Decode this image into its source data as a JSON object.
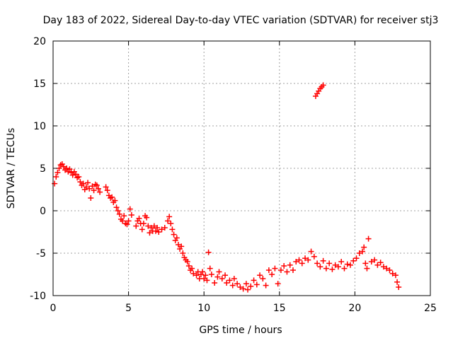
{
  "chart_data": {
    "type": "scatter",
    "title": "Day 183 of 2022, Sidereal Day-to-day VTEC variation (SDTVAR) for receiver stj3",
    "xlabel": "GPS time / hours",
    "ylabel": "SDTVAR / TECUs",
    "xlim": [
      0,
      25
    ],
    "ylim": [
      -10,
      20
    ],
    "xticks": [
      0,
      5,
      10,
      15,
      20,
      25
    ],
    "yticks": [
      -10,
      -5,
      0,
      5,
      10,
      15,
      20
    ],
    "xtick_labels": [
      "0",
      "5",
      "10",
      "15",
      "20",
      "25"
    ],
    "ytick_labels": [
      "-10",
      "-5",
      "0",
      "5",
      "10",
      "15",
      "20"
    ],
    "grid": true,
    "marker": "+",
    "color": "#ff0000",
    "series": [
      {
        "name": "SDTVAR",
        "points": [
          [
            0.1,
            3.2
          ],
          [
            0.2,
            4.0
          ],
          [
            0.3,
            4.5
          ],
          [
            0.4,
            5.0
          ],
          [
            0.5,
            5.4
          ],
          [
            0.6,
            5.5
          ],
          [
            0.7,
            5.2
          ],
          [
            0.8,
            4.8
          ],
          [
            0.9,
            5.0
          ],
          [
            1.0,
            4.6
          ],
          [
            1.1,
            4.9
          ],
          [
            1.2,
            4.5
          ],
          [
            1.3,
            4.2
          ],
          [
            1.4,
            4.6
          ],
          [
            1.5,
            4.3
          ],
          [
            1.6,
            3.9
          ],
          [
            1.7,
            4.0
          ],
          [
            1.8,
            3.4
          ],
          [
            1.9,
            3.0
          ],
          [
            2.0,
            3.2
          ],
          [
            2.1,
            2.5
          ],
          [
            2.2,
            2.8
          ],
          [
            2.3,
            3.3
          ],
          [
            2.4,
            2.6
          ],
          [
            2.5,
            1.5
          ],
          [
            2.6,
            2.9
          ],
          [
            2.7,
            2.4
          ],
          [
            2.8,
            3.1
          ],
          [
            2.9,
            3.0
          ],
          [
            3.0,
            2.6
          ],
          [
            3.1,
            2.2
          ],
          [
            3.5,
            2.8
          ],
          [
            3.6,
            2.4
          ],
          [
            3.7,
            1.8
          ],
          [
            3.8,
            1.5
          ],
          [
            3.9,
            1.6
          ],
          [
            4.0,
            1.0
          ],
          [
            4.1,
            1.2
          ],
          [
            4.2,
            0.4
          ],
          [
            4.3,
            0.0
          ],
          [
            4.4,
            -0.4
          ],
          [
            4.5,
            -1.0
          ],
          [
            4.6,
            -1.2
          ],
          [
            4.7,
            -0.6
          ],
          [
            4.8,
            -1.5
          ],
          [
            4.9,
            -1.6
          ],
          [
            5.0,
            -1.2
          ],
          [
            5.1,
            0.2
          ],
          [
            5.2,
            -0.5
          ],
          [
            5.5,
            -1.8
          ],
          [
            5.6,
            -1.2
          ],
          [
            5.7,
            -0.9
          ],
          [
            5.8,
            -1.5
          ],
          [
            5.9,
            -2.2
          ],
          [
            6.0,
            -1.5
          ],
          [
            6.1,
            -0.6
          ],
          [
            6.2,
            -0.8
          ],
          [
            6.3,
            -1.8
          ],
          [
            6.4,
            -2.6
          ],
          [
            6.5,
            -2.0
          ],
          [
            6.6,
            -2.4
          ],
          [
            6.7,
            -1.8
          ],
          [
            6.8,
            -2.4
          ],
          [
            6.9,
            -2.0
          ],
          [
            7.0,
            -2.5
          ],
          [
            7.2,
            -2.2
          ],
          [
            7.4,
            -2.0
          ],
          [
            7.6,
            -1.2
          ],
          [
            7.7,
            -0.7
          ],
          [
            7.8,
            -1.5
          ],
          [
            7.9,
            -2.2
          ],
          [
            8.0,
            -2.8
          ],
          [
            8.1,
            -3.5
          ],
          [
            8.2,
            -3.2
          ],
          [
            8.3,
            -4.0
          ],
          [
            8.4,
            -4.5
          ],
          [
            8.5,
            -4.2
          ],
          [
            8.6,
            -5.0
          ],
          [
            8.7,
            -5.5
          ],
          [
            8.8,
            -5.8
          ],
          [
            8.9,
            -6.0
          ],
          [
            9.0,
            -6.5
          ],
          [
            9.1,
            -7.0
          ],
          [
            9.2,
            -6.8
          ],
          [
            9.3,
            -7.4
          ],
          [
            9.5,
            -7.6
          ],
          [
            9.6,
            -7.2
          ],
          [
            9.7,
            -8.0
          ],
          [
            9.8,
            -7.5
          ],
          [
            9.9,
            -7.2
          ],
          [
            10.0,
            -8.0
          ],
          [
            10.1,
            -7.6
          ],
          [
            10.2,
            -8.2
          ],
          [
            10.3,
            -4.9
          ],
          [
            10.4,
            -6.8
          ],
          [
            10.5,
            -7.5
          ],
          [
            10.7,
            -8.5
          ],
          [
            10.9,
            -7.8
          ],
          [
            11.0,
            -7.2
          ],
          [
            11.2,
            -8.0
          ],
          [
            11.4,
            -7.6
          ],
          [
            11.5,
            -8.5
          ],
          [
            11.7,
            -8.2
          ],
          [
            11.9,
            -8.8
          ],
          [
            12.0,
            -8.0
          ],
          [
            12.2,
            -8.6
          ],
          [
            12.4,
            -9.0
          ],
          [
            12.6,
            -9.2
          ],
          [
            12.8,
            -8.6
          ],
          [
            12.9,
            -9.3
          ],
          [
            13.1,
            -8.9
          ],
          [
            13.3,
            -8.2
          ],
          [
            13.5,
            -8.7
          ],
          [
            13.7,
            -7.6
          ],
          [
            13.9,
            -8.0
          ],
          [
            14.1,
            -8.8
          ],
          [
            14.3,
            -7.0
          ],
          [
            14.5,
            -7.5
          ],
          [
            14.7,
            -6.8
          ],
          [
            14.9,
            -8.6
          ],
          [
            15.1,
            -7.0
          ],
          [
            15.3,
            -6.5
          ],
          [
            15.5,
            -7.2
          ],
          [
            15.7,
            -6.4
          ],
          [
            15.9,
            -7.0
          ],
          [
            16.1,
            -6.0
          ],
          [
            16.3,
            -5.8
          ],
          [
            16.5,
            -6.2
          ],
          [
            16.7,
            -5.6
          ],
          [
            16.9,
            -5.8
          ],
          [
            17.1,
            -4.8
          ],
          [
            17.3,
            -5.4
          ],
          [
            17.5,
            -6.2
          ],
          [
            17.7,
            -6.6
          ],
          [
            17.9,
            -5.9
          ],
          [
            18.1,
            -6.8
          ],
          [
            18.3,
            -6.2
          ],
          [
            18.5,
            -6.9
          ],
          [
            18.7,
            -6.4
          ],
          [
            18.9,
            -6.6
          ],
          [
            19.1,
            -6.0
          ],
          [
            19.3,
            -6.8
          ],
          [
            19.5,
            -6.3
          ],
          [
            19.7,
            -6.4
          ],
          [
            19.9,
            -5.9
          ],
          [
            20.1,
            -5.6
          ],
          [
            20.3,
            -5.0
          ],
          [
            20.5,
            -4.8
          ],
          [
            20.6,
            -4.3
          ],
          [
            20.7,
            -6.2
          ],
          [
            20.8,
            -6.8
          ],
          [
            20.9,
            -3.3
          ],
          [
            21.1,
            -6.0
          ],
          [
            21.3,
            -5.8
          ],
          [
            21.5,
            -6.4
          ],
          [
            21.7,
            -6.1
          ],
          [
            21.9,
            -6.6
          ],
          [
            22.1,
            -6.8
          ],
          [
            22.3,
            -7.0
          ],
          [
            22.5,
            -7.4
          ],
          [
            22.7,
            -7.6
          ],
          [
            22.8,
            -8.4
          ],
          [
            22.9,
            -9.0
          ],
          [
            17.4,
            13.5
          ],
          [
            17.5,
            13.8
          ],
          [
            17.6,
            14.1
          ],
          [
            17.7,
            14.4
          ],
          [
            17.8,
            14.6
          ],
          [
            17.9,
            14.8
          ]
        ]
      }
    ]
  }
}
